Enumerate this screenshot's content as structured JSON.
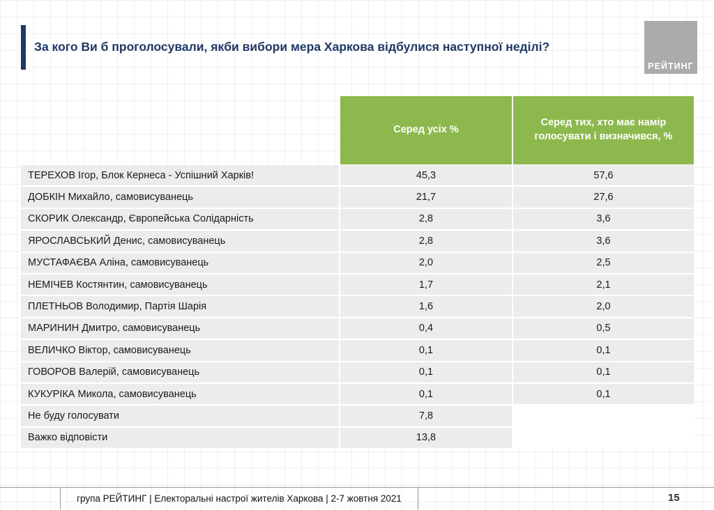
{
  "title": "За кого Ви б проголосували, якби вибори мера Харкова відбулися наступної неділі?",
  "logo_text": "РЕЙТИНГ",
  "table": {
    "headers": {
      "all": "Серед усіх %",
      "decided": "Серед тих, хто має намір голосувати і визначився, %"
    },
    "rows": [
      {
        "name": "ТЕРЕХОВ Ігор, Блок Кернеса  - Успішний Харків!",
        "all": "45,3",
        "decided": "57,6"
      },
      {
        "name": "ДОБКІН Михайло, самовисуванець",
        "all": "21,7",
        "decided": "27,6"
      },
      {
        "name": "СКОРИК Олександр, Європейська Солідарність",
        "all": "2,8",
        "decided": "3,6"
      },
      {
        "name": "ЯРОСЛАВСЬКИЙ Денис, самовисуванець",
        "all": "2,8",
        "decided": "3,6"
      },
      {
        "name": "МУСТАФАЄВА Аліна, самовисуванець",
        "all": "2,0",
        "decided": "2,5"
      },
      {
        "name": "НЕМІЧЕВ Костянтин, самовисуванець",
        "all": "1,7",
        "decided": "2,1"
      },
      {
        "name": "ПЛЕТНЬОВ Володимир, Партія Шарія",
        "all": "1,6",
        "decided": "2,0"
      },
      {
        "name": "МАРИНИН Дмитро, самовисуванець",
        "all": "0,4",
        "decided": "0,5"
      },
      {
        "name": "ВЕЛИЧКО Віктор, самовисуванець",
        "all": "0,1",
        "decided": "0,1"
      },
      {
        "name": "ГОВОРОВ Валерій, самовисуванець",
        "all": "0,1",
        "decided": "0,1"
      },
      {
        "name": "КУКУРІКА Микола, самовисуванець",
        "all": "0,1",
        "decided": "0,1"
      },
      {
        "name": "Не буду голосувати",
        "all": "7,8",
        "decided": null
      },
      {
        "name": "Важко відповісти",
        "all": "13,8",
        "decided": null
      }
    ]
  },
  "footer": {
    "text": "група РЕЙТИНГ  | Електоральні настрої жителів Харкова | 2-7 жовтня 2021",
    "page": "15"
  },
  "colors": {
    "accent_navy": "#1F3864",
    "header_green": "#8DB84E",
    "row_gray": "#ECECEC",
    "logo_gray": "#ABABAB"
  },
  "chart_data": {
    "type": "table",
    "title": "За кого Ви б проголосували, якби вибори мера Харкова відбулися наступної неділі?",
    "columns": [
      "",
      "Серед усіх %",
      "Серед тих, хто має намір голосувати і визначився, %"
    ],
    "rows": [
      [
        "ТЕРЕХОВ Ігор, Блок Кернеса - Успішний Харків!",
        45.3,
        57.6
      ],
      [
        "ДОБКІН Михайло, самовисуванець",
        21.7,
        27.6
      ],
      [
        "СКОРИК Олександр, Європейська Солідарність",
        2.8,
        3.6
      ],
      [
        "ЯРОСЛАВСЬКИЙ Денис, самовисуванець",
        2.8,
        3.6
      ],
      [
        "МУСТАФАЄВА Аліна, самовисуванець",
        2.0,
        2.5
      ],
      [
        "НЕМІЧЕВ Костянтин, самовисуванець",
        1.7,
        2.1
      ],
      [
        "ПЛЕТНЬОВ Володимир, Партія Шарія",
        1.6,
        2.0
      ],
      [
        "МАРИНИН Дмитро, самовисуванець",
        0.4,
        0.5
      ],
      [
        "ВЕЛИЧКО Віктор, самовисуванець",
        0.1,
        0.1
      ],
      [
        "ГОВОРОВ Валерій, самовисуванець",
        0.1,
        0.1
      ],
      [
        "КУКУРІКА Микола, самовисуванець",
        0.1,
        0.1
      ],
      [
        "Не буду голосувати",
        7.8,
        null
      ],
      [
        "Важко відповісти",
        13.8,
        null
      ]
    ],
    "notes": "Poll results table; values are percentages; last two rows have no value in the decided-voters column."
  }
}
